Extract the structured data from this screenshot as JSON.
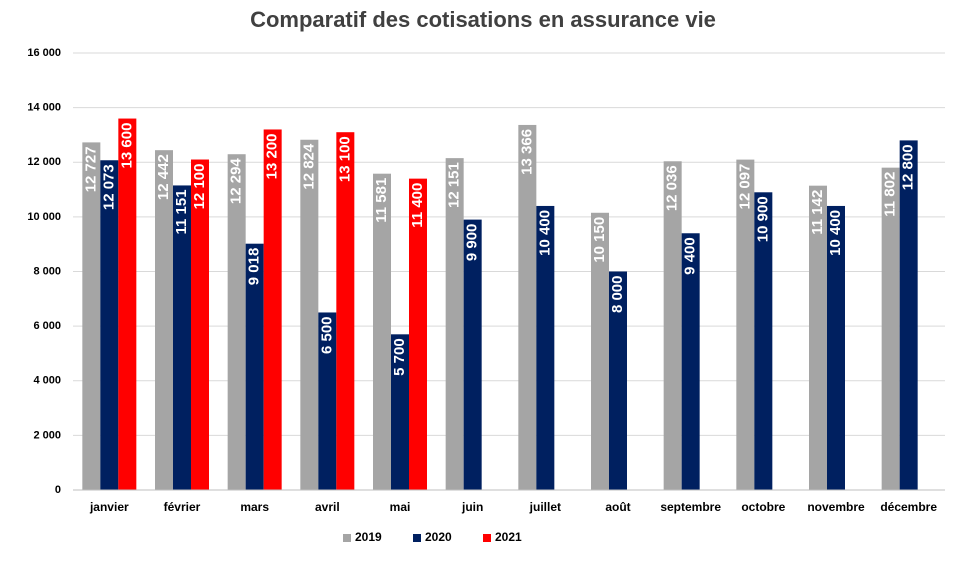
{
  "chart_data": {
    "type": "bar",
    "title": "Comparatif des cotisations en assurance vie",
    "categories": [
      "janvier",
      "février",
      "mars",
      "avril",
      "mai",
      "juin",
      "juillet",
      "août",
      "septembre",
      "octobre",
      "novembre",
      "décembre"
    ],
    "series": [
      {
        "name": "2019",
        "color": "#a5a5a5",
        "values": [
          12727,
          12442,
          12294,
          12824,
          11581,
          12151,
          13366,
          10150,
          12036,
          12097,
          11142,
          11802
        ],
        "value_labels": [
          "12 727",
          "12 442",
          "12 294",
          "12 824",
          "11 581",
          "12 151",
          "13 366",
          "10 150",
          "12 036",
          "12 097",
          "11 142",
          "11 802"
        ]
      },
      {
        "name": "2020",
        "color": "#002060",
        "values": [
          12073,
          11151,
          9018,
          6500,
          5700,
          9900,
          10400,
          8000,
          9400,
          10900,
          10400,
          12800
        ],
        "value_labels": [
          "12 073",
          "11 151",
          "9 018",
          "6 500",
          "5 700",
          "9 900",
          "10 400",
          "8 000",
          "9 400",
          "10 900",
          "10 400",
          "12 800"
        ]
      },
      {
        "name": "2021",
        "color": "#ff0000",
        "values": [
          13600,
          12100,
          13200,
          13100,
          11400,
          null,
          null,
          null,
          null,
          null,
          null,
          null
        ],
        "value_labels": [
          "13 600",
          "12 100",
          "13 200",
          "13 100",
          "11 400",
          null,
          null,
          null,
          null,
          null,
          null,
          null
        ]
      }
    ],
    "ylim": [
      0,
      16000
    ],
    "yticks": [
      0,
      {
        "value": 2000,
        "label": "2 000"
      },
      {
        "value": 4000,
        "label": "4 000"
      },
      {
        "value": 6000,
        "label": "6 000"
      },
      {
        "value": 8000,
        "label": "8 000"
      },
      {
        "value": 10000,
        "label": "10 000"
      },
      {
        "value": 12000,
        "label": "12 000"
      },
      {
        "value": 14000,
        "label": "14 000"
      },
      {
        "value": 16000,
        "label": "16 000"
      }
    ],
    "grid": true,
    "legend": "bottom"
  }
}
